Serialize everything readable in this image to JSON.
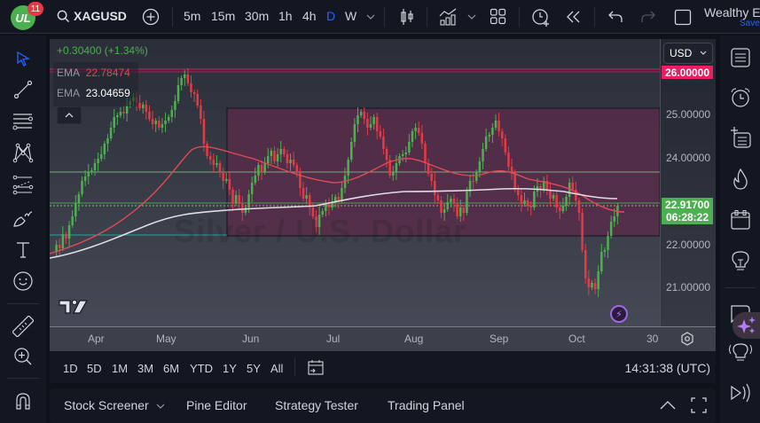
{
  "topbar": {
    "logo_text": "UL",
    "notification_count": "11",
    "symbol": "XAGUSD",
    "intervals": [
      {
        "label": "5m",
        "active": false
      },
      {
        "label": "15m",
        "active": false
      },
      {
        "label": "30m",
        "active": false
      },
      {
        "label": "1h",
        "active": false
      },
      {
        "label": "4h",
        "active": false
      },
      {
        "label": "D",
        "active": true
      },
      {
        "label": "W",
        "active": false
      }
    ],
    "layout_name": "Wealthy E",
    "save_label": "Save",
    "icons": [
      "search-icon",
      "add-compare-icon",
      "chevron-down-icon",
      "candles-icon",
      "indicators-icon",
      "layouts-icon",
      "alert-icon",
      "replay-icon",
      "undo-icon",
      "redo-icon",
      "fullscreen-icon"
    ]
  },
  "left_toolbar": {
    "tools": [
      "cursor-icon",
      "trendline-icon",
      "fib-icon",
      "pattern-icon",
      "prediction-icon",
      "brush-icon",
      "text-icon",
      "emoji-icon",
      "ruler-icon",
      "zoom-in-icon",
      "magnet-icon"
    ]
  },
  "legend": {
    "change": "+0.30400 (+1.34%)",
    "ema1_label": "EMA",
    "ema1_value": "22.78474",
    "ema2_label": "EMA",
    "ema2_value": "23.04659"
  },
  "chart": {
    "watermark": "Silver / U.S. Dollar",
    "colors": {
      "up": "#4caf50",
      "down": "#e53945",
      "ema_fast": "#e04a55",
      "ema_slow": "#e0dce8",
      "zone": "#5a2a4a",
      "resistance": "#e91e63"
    }
  },
  "price_axis": {
    "currency": "USD",
    "labels": [
      "25.00000",
      "24.00000",
      "22.00000",
      "21.00000"
    ],
    "resistance_label": "26.00000",
    "current_price": "22.91700",
    "countdown": "06:28:22"
  },
  "time_axis": {
    "labels": [
      "Apr",
      "May",
      "Jun",
      "Jul",
      "Aug",
      "Sep",
      "Oct",
      "30"
    ]
  },
  "range_bar": {
    "ranges": [
      "1D",
      "5D",
      "1M",
      "3M",
      "6M",
      "YTD",
      "1Y",
      "5Y",
      "All"
    ],
    "clock": "14:31:38 (UTC)"
  },
  "bottom_panel": {
    "tabs": [
      "Stock Screener",
      "Pine Editor",
      "Strategy Tester",
      "Trading Panel"
    ]
  },
  "right_toolbar": {
    "icons": [
      "watchlist-icon",
      "alarm-icon",
      "add-list-icon",
      "hotlist-icon",
      "calendar-icon",
      "ideas-icon",
      "chat-icon",
      "assistant-sparkle-icon",
      "streams-icon",
      "signals-icon"
    ]
  }
}
